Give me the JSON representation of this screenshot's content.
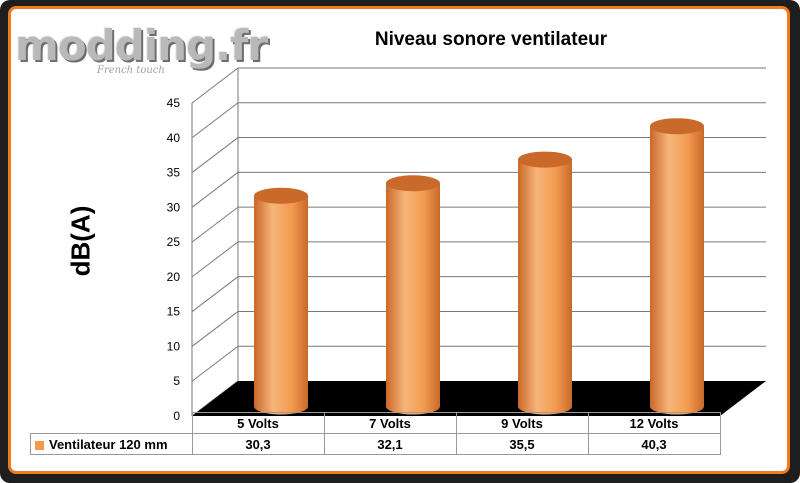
{
  "logo": {
    "text": "modding.fr",
    "tagline": "French touch"
  },
  "colors": {
    "bar": "#f29b4f",
    "bar_dark": "#c9692a",
    "bar_light": "#f7b57b",
    "floor": "#000000",
    "frame": "#f07a1c"
  },
  "chart_data": {
    "type": "bar",
    "title": "Niveau sonore ventilateur",
    "xlabel": "",
    "ylabel": "dB(A)",
    "ylim": [
      0,
      45
    ],
    "yticks": [
      "0",
      "5",
      "10",
      "15",
      "20",
      "25",
      "30",
      "35",
      "40",
      "45"
    ],
    "categories": [
      "5 Volts",
      "7 Volts",
      "9 Volts",
      "12 Volts"
    ],
    "series": [
      {
        "name": "Ventilateur 120 mm",
        "values": [
          30.3,
          32.1,
          35.5,
          40.3
        ],
        "labels": [
          "30,3",
          "32,1",
          "35,5",
          "40,3"
        ]
      }
    ],
    "grid": true,
    "legend": "data table below chart"
  }
}
